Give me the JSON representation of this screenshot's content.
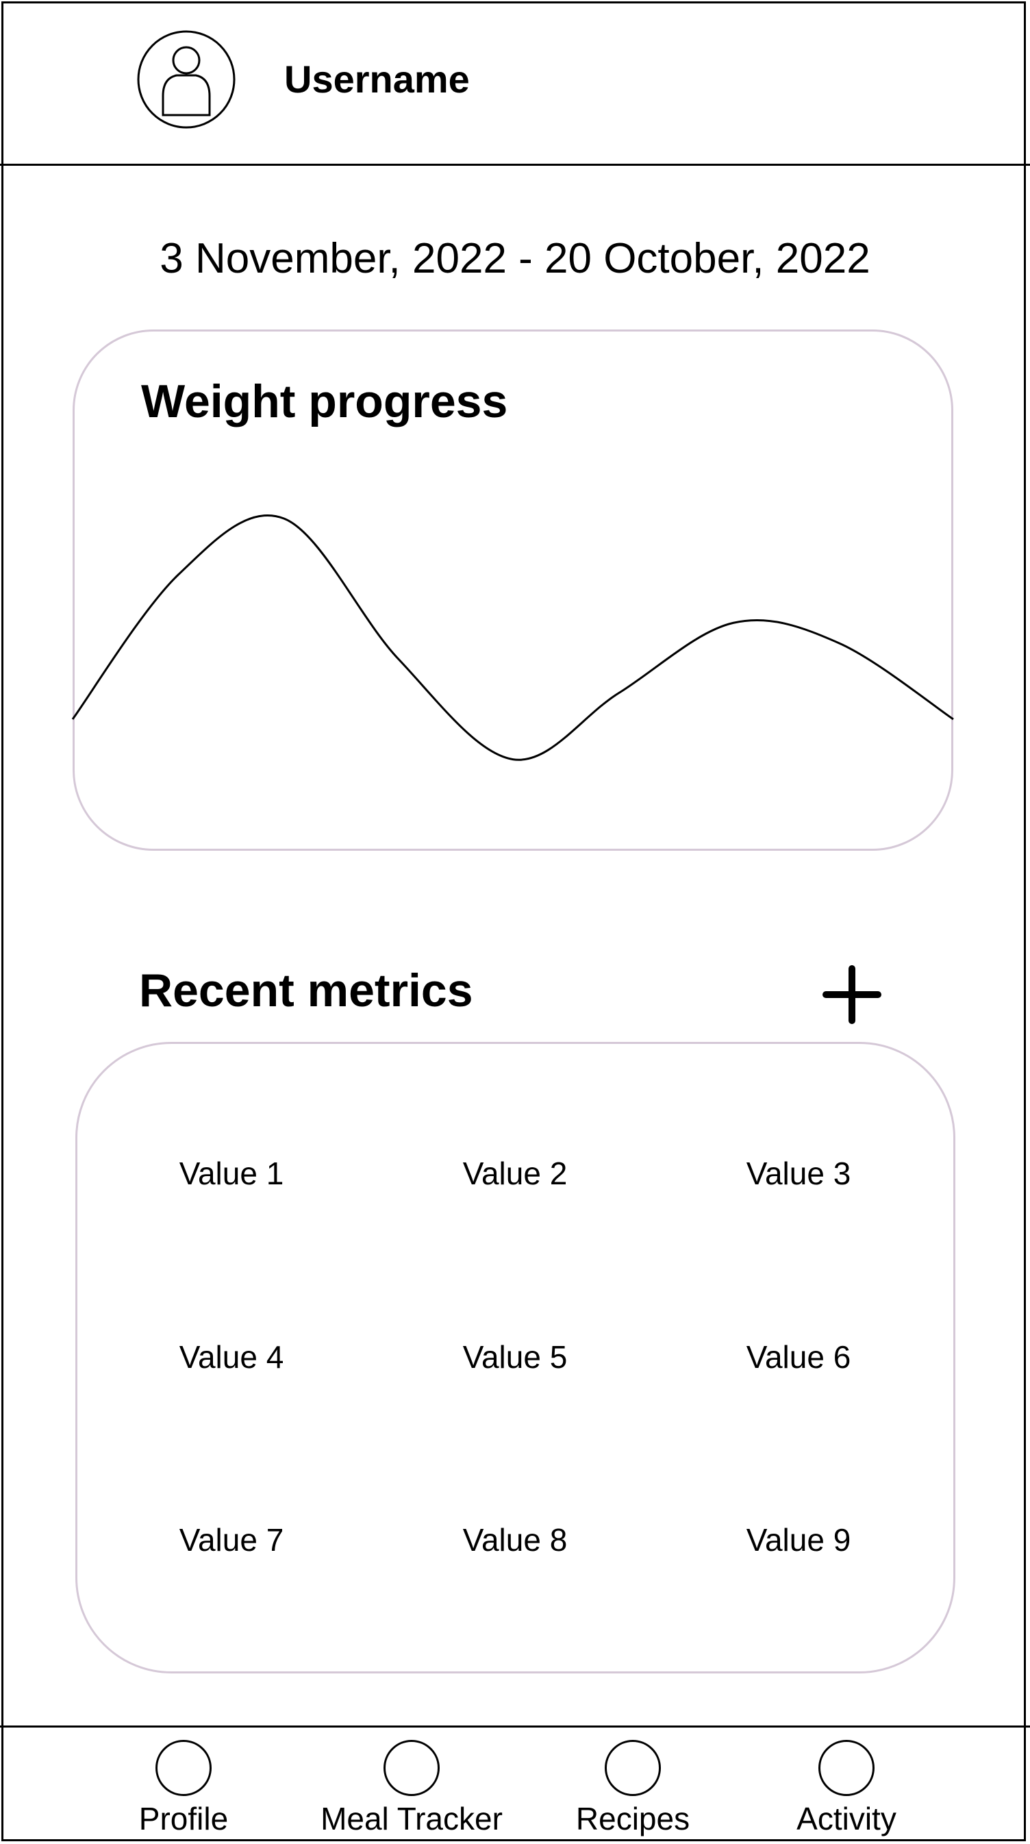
{
  "header": {
    "username": "Username",
    "avatar_icon": "user-avatar-icon"
  },
  "date_range": "3 November, 2022 - 20 October, 2022",
  "weight_card": {
    "title": "Weight progress"
  },
  "chart_data": {
    "type": "line",
    "title": "Weight progress",
    "xlabel": "",
    "ylabel": "",
    "grid": false,
    "legend": "none",
    "series": [
      {
        "x": [
          0,
          0.12,
          0.24,
          0.37,
          0.5,
          0.62,
          0.75,
          0.87,
          1.0
        ],
        "values": [
          0.0,
          0.72,
          1.0,
          0.3,
          -0.2,
          0.13,
          0.48,
          0.38,
          0.0
        ]
      }
    ]
  },
  "metrics": {
    "title": "Recent metrics",
    "add_icon": "plus-icon",
    "values": [
      "Value 1",
      "Value 2",
      "Value 3",
      "Value 4",
      "Value 5",
      "Value 6",
      "Value 7",
      "Value 8",
      "Value 9"
    ]
  },
  "tabs": [
    {
      "label": "Profile",
      "icon": "profile-tab-icon"
    },
    {
      "label": "Meal Tracker",
      "icon": "meal-tracker-tab-icon"
    },
    {
      "label": "Recipes",
      "icon": "recipes-tab-icon"
    },
    {
      "label": "Activity",
      "icon": "activity-tab-icon"
    }
  ],
  "colors": {
    "card_border": "#d5c8d7",
    "line": "#000000"
  }
}
